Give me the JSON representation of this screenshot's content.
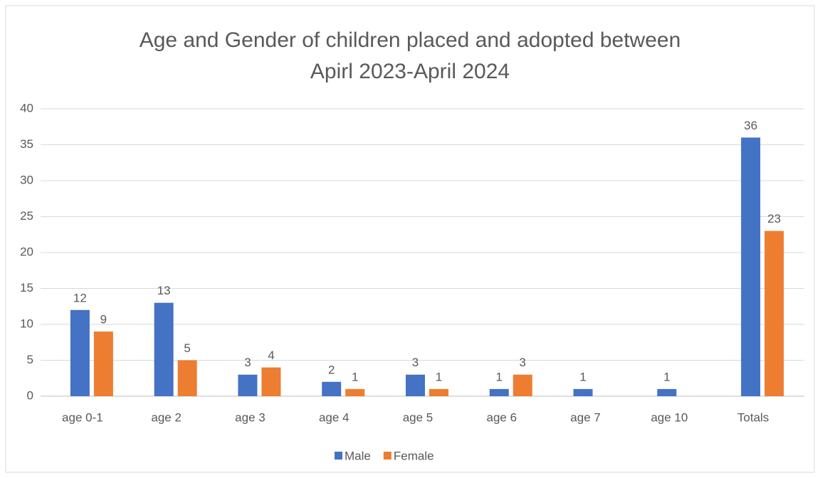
{
  "chart_data": {
    "type": "bar",
    "title": [
      "Age and Gender of children placed and adopted between",
      "Apirl 2023-April 2024"
    ],
    "categories": [
      "age 0-1",
      "age 2",
      "age 3",
      "age 4",
      "age 5",
      "age 6",
      "age 7",
      "age 10",
      "Totals"
    ],
    "series": [
      {
        "name": "Male",
        "color": "#4472c4",
        "values": [
          12,
          13,
          3,
          2,
          3,
          1,
          1,
          1,
          36
        ]
      },
      {
        "name": "Female",
        "color": "#ed7d31",
        "values": [
          9,
          5,
          4,
          1,
          1,
          3,
          null,
          null,
          23
        ]
      }
    ],
    "ylim": [
      0,
      40
    ],
    "yticks": [
      0,
      5,
      10,
      15,
      20,
      25,
      30,
      35,
      40
    ],
    "grid": true,
    "legend": "bottom"
  }
}
